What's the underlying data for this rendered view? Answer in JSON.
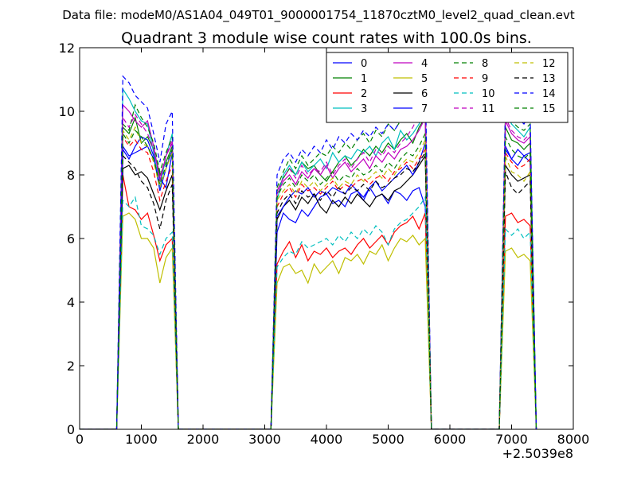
{
  "chart_data": {
    "type": "line",
    "suptitle": "Data file: modeM0/AS1A04_049T01_9000001754_11870cztM0_level2_quad_clean.evt",
    "title": "Quadrant 3 module wise count rates with 100.0s bins.",
    "xlabel": "",
    "ylabel": "",
    "x_offset_label": "+2.5039e8",
    "xlim": [
      0,
      8000
    ],
    "ylim": [
      0,
      12
    ],
    "xticks": [
      0,
      1000,
      2000,
      3000,
      4000,
      5000,
      6000,
      7000,
      8000
    ],
    "yticks": [
      0,
      2,
      4,
      6,
      8,
      10,
      12
    ],
    "grid": false,
    "legend_position": "top-right",
    "legend_columns": 4,
    "segments": [
      {
        "x_start": 700,
        "x_end": 1500
      },
      {
        "x_start": 3200,
        "x_end": 5600
      },
      {
        "x_start": 6900,
        "x_end": 7300
      }
    ],
    "series": [
      {
        "name": "0",
        "color": "#0000ff",
        "dash": "solid",
        "segments": [
          [
            8.9,
            8.6,
            8.7,
            8.8,
            8.9,
            8.5,
            7.9,
            7.6,
            8.7
          ],
          [
            6.2,
            6.8,
            6.6,
            6.5,
            6.9,
            6.7,
            7.0,
            7.3,
            7.4,
            7.1,
            7.2,
            7.0,
            7.4,
            7.5,
            7.2,
            7.6,
            7.3,
            7.4,
            7.1,
            7.5,
            7.4,
            7.2,
            7.5,
            7.6,
            7.0
          ],
          [
            8.8,
            8.5,
            8.3,
            8.6,
            8.7
          ]
        ]
      },
      {
        "name": "1",
        "color": "#008000",
        "dash": "solid",
        "segments": [
          [
            9.5,
            9.3,
            9.8,
            9.0,
            9.2,
            8.8,
            8.0,
            8.4,
            8.9
          ],
          [
            7.5,
            7.9,
            8.2,
            8.0,
            8.4,
            8.2,
            8.3,
            8.0,
            7.8,
            8.1,
            8.4,
            8.6,
            8.3,
            8.5,
            8.8,
            8.6,
            8.9,
            8.7,
            9.0,
            8.8,
            9.1,
            9.3,
            9.0,
            9.5,
            9.8
          ],
          [
            9.5,
            9.1,
            9.0,
            8.8,
            9.0
          ]
        ]
      },
      {
        "name": "2",
        "color": "#ff0000",
        "dash": "solid",
        "segments": [
          [
            8.0,
            7.0,
            6.9,
            6.6,
            6.8,
            6.1,
            5.3,
            5.8,
            6.0
          ],
          [
            5.2,
            5.6,
            5.9,
            5.4,
            5.8,
            5.3,
            5.6,
            5.5,
            5.7,
            5.4,
            5.6,
            5.7,
            5.5,
            5.8,
            6.0,
            5.7,
            5.9,
            6.1,
            5.8,
            6.2,
            6.4,
            6.5,
            6.7,
            6.3,
            6.8
          ],
          [
            6.7,
            6.8,
            6.5,
            6.6,
            6.4
          ]
        ]
      },
      {
        "name": "3",
        "color": "#00bfbf",
        "dash": "solid",
        "segments": [
          [
            10.7,
            10.4,
            10.0,
            9.7,
            9.6,
            8.7,
            7.6,
            8.6,
            9.3
          ],
          [
            7.2,
            8.0,
            8.3,
            8.0,
            8.4,
            8.1,
            8.3,
            8.5,
            8.2,
            8.7,
            8.4,
            8.6,
            8.5,
            8.8,
            8.7,
            8.9,
            8.6,
            9.0,
            9.2,
            8.8,
            9.4,
            9.1,
            9.3,
            9.6,
            10.2
          ],
          [
            10.0,
            9.6,
            9.4,
            9.2,
            9.5
          ]
        ]
      },
      {
        "name": "4",
        "color": "#bf00bf",
        "dash": "solid",
        "segments": [
          [
            10.2,
            10.0,
            9.7,
            9.5,
            9.7,
            8.9,
            7.8,
            8.6,
            9.0
          ],
          [
            7.4,
            7.8,
            8.0,
            7.7,
            8.1,
            7.9,
            8.2,
            8.0,
            8.3,
            7.9,
            8.2,
            8.4,
            8.1,
            8.3,
            8.5,
            8.2,
            8.6,
            8.4,
            8.7,
            8.5,
            8.8,
            8.9,
            9.1,
            9.4,
            9.8
          ],
          [
            9.7,
            9.3,
            9.1,
            9.0,
            9.2
          ]
        ]
      },
      {
        "name": "5",
        "color": "#bfbf00",
        "dash": "solid",
        "segments": [
          [
            6.7,
            6.8,
            6.6,
            6.0,
            6.0,
            5.7,
            4.6,
            5.4,
            5.7
          ],
          [
            4.6,
            5.1,
            5.2,
            4.9,
            5.0,
            4.6,
            5.2,
            4.9,
            5.1,
            5.3,
            4.9,
            5.4,
            5.3,
            5.5,
            5.2,
            5.6,
            5.5,
            5.8,
            5.3,
            5.7,
            6.0,
            5.9,
            6.1,
            5.8,
            6.0
          ],
          [
            5.6,
            5.7,
            5.4,
            5.5,
            5.3
          ]
        ]
      },
      {
        "name": "6",
        "color": "#000000",
        "dash": "solid",
        "segments": [
          [
            8.2,
            8.3,
            8.0,
            8.1,
            7.9,
            7.4,
            6.9,
            7.5,
            8.0
          ],
          [
            6.6,
            7.0,
            7.2,
            6.9,
            7.3,
            7.1,
            7.4,
            7.0,
            6.8,
            7.2,
            7.0,
            7.3,
            7.1,
            7.4,
            7.2,
            7.0,
            7.3,
            7.4,
            7.2,
            7.5,
            7.6,
            7.8,
            8.0,
            8.3,
            8.6
          ],
          [
            8.3,
            8.0,
            7.8,
            7.9,
            8.0
          ]
        ]
      },
      {
        "name": "7",
        "color": "#0000ff",
        "dash": "solid",
        "segments": [
          [
            8.8,
            8.5,
            8.9,
            9.2,
            9.1,
            8.6,
            7.5,
            8.2,
            8.8
          ],
          [
            6.7,
            7.0,
            7.3,
            7.5,
            7.4,
            7.6,
            7.3,
            7.5,
            7.4,
            7.6,
            7.5,
            7.4,
            7.7,
            7.5,
            7.3,
            7.6,
            7.8,
            7.5,
            7.7,
            7.9,
            8.1,
            8.3,
            8.0,
            8.4,
            9.0
          ],
          [
            8.9,
            8.5,
            8.8,
            8.6,
            8.4
          ]
        ]
      },
      {
        "name": "8",
        "color": "#008000",
        "dash": "dashed",
        "segments": [
          [
            9.6,
            9.4,
            10.2,
            9.8,
            9.5,
            9.0,
            8.1,
            8.7,
            9.2
          ],
          [
            7.6,
            8.1,
            8.5,
            8.2,
            8.6,
            8.3,
            8.5,
            8.7,
            8.6,
            8.9,
            8.7,
            9.0,
            8.8,
            9.1,
            9.3,
            9.0,
            9.4,
            9.2,
            9.6,
            9.4,
            9.7,
            9.9,
            10.1,
            10.3,
            10.8
          ],
          [
            10.1,
            9.7,
            9.5,
            9.4,
            9.6
          ]
        ]
      },
      {
        "name": "9",
        "color": "#ff0000",
        "dash": "dashed",
        "segments": [
          [
            9.2,
            8.9,
            9.1,
            8.8,
            8.7,
            8.1,
            7.2,
            7.8,
            8.3
          ],
          [
            7.0,
            7.4,
            7.6,
            7.3,
            7.7,
            7.5,
            7.6,
            7.4,
            7.6,
            7.8,
            7.5,
            7.7,
            7.6,
            7.8,
            7.9,
            7.7,
            7.9,
            8.0,
            7.8,
            8.1,
            8.2,
            8.4,
            8.2,
            8.5,
            8.8
          ],
          [
            8.7,
            8.4,
            8.2,
            8.3,
            8.5
          ]
        ]
      },
      {
        "name": "10",
        "color": "#00bfbf",
        "dash": "dashed",
        "segments": [
          [
            7.2,
            7.0,
            7.3,
            6.4,
            6.3,
            6.1,
            5.5,
            6.0,
            6.2
          ],
          [
            5.1,
            5.4,
            5.6,
            5.5,
            5.9,
            5.7,
            5.8,
            5.9,
            6.0,
            5.8,
            6.1,
            5.9,
            6.2,
            6.0,
            6.3,
            6.1,
            6.4,
            6.2,
            5.8,
            6.3,
            6.5,
            6.6,
            6.8,
            7.0,
            7.3
          ],
          [
            6.3,
            6.1,
            6.3,
            6.0,
            6.2
          ]
        ]
      },
      {
        "name": "11",
        "color": "#bf00bf",
        "dash": "dashed",
        "segments": [
          [
            9.8,
            9.5,
            9.9,
            9.6,
            9.3,
            8.8,
            7.9,
            8.6,
            9.1
          ],
          [
            7.5,
            7.9,
            8.2,
            7.9,
            8.3,
            8.0,
            8.2,
            8.1,
            8.4,
            8.0,
            8.3,
            8.5,
            8.2,
            8.5,
            8.7,
            8.4,
            8.8,
            8.6,
            8.9,
            8.7,
            9.0,
            9.2,
            9.5,
            9.9,
            10.5
          ],
          [
            9.8,
            9.4,
            9.2,
            9.1,
            9.3
          ]
        ]
      },
      {
        "name": "12",
        "color": "#bfbf00",
        "dash": "dashed",
        "segments": [
          [
            9.4,
            9.1,
            9.5,
            9.0,
            8.9,
            8.4,
            7.6,
            8.2,
            8.7
          ],
          [
            7.2,
            7.5,
            7.7,
            7.4,
            7.8,
            7.6,
            7.8,
            7.5,
            7.7,
            7.9,
            7.6,
            7.8,
            7.7,
            8.0,
            7.8,
            7.9,
            8.1,
            7.9,
            8.2,
            8.0,
            8.3,
            8.5,
            8.4,
            8.7,
            9.1
          ],
          [
            8.6,
            8.1,
            8.0,
            7.8,
            8.1
          ]
        ]
      },
      {
        "name": "13",
        "color": "#000000",
        "dash": "dashed",
        "segments": [
          [
            8.6,
            8.4,
            8.2,
            7.8,
            7.6,
            7.1,
            6.3,
            7.2,
            7.7
          ],
          [
            6.8,
            7.2,
            7.4,
            7.1,
            7.5,
            7.3,
            7.4,
            7.2,
            7.5,
            7.3,
            7.6,
            7.4,
            7.6,
            7.5,
            7.7,
            7.5,
            7.8,
            7.6,
            7.7,
            7.9,
            8.0,
            8.2,
            8.1,
            8.4,
            8.7
          ],
          [
            8.1,
            7.6,
            7.4,
            7.6,
            7.8
          ]
        ]
      },
      {
        "name": "14",
        "color": "#0000ff",
        "dash": "dashed",
        "segments": [
          [
            11.1,
            10.9,
            10.5,
            10.3,
            10.1,
            9.3,
            8.4,
            9.6,
            10.0
          ],
          [
            8.0,
            8.5,
            8.7,
            8.4,
            8.8,
            8.6,
            8.9,
            8.7,
            9.1,
            8.8,
            9.2,
            9.0,
            9.3,
            9.1,
            9.4,
            9.2,
            9.5,
            9.3,
            9.6,
            9.4,
            9.7,
            10.0,
            10.3,
            10.7,
            11.2
          ],
          [
            10.3,
            9.9,
            9.8,
            9.6,
            9.9
          ]
        ]
      },
      {
        "name": "15",
        "color": "#008000",
        "dash": "dashed",
        "segments": [
          [
            9.3,
            9.0,
            9.4,
            9.2,
            8.9,
            8.5,
            7.7,
            8.3,
            8.8
          ],
          [
            7.3,
            7.7,
            7.9,
            7.6,
            8.0,
            7.8,
            8.0,
            7.7,
            7.9,
            8.1,
            7.8,
            8.0,
            7.9,
            8.2,
            8.0,
            8.1,
            8.3,
            8.1,
            8.4,
            8.2,
            8.5,
            8.7,
            8.6,
            8.9,
            9.3
          ],
          [
            9.2,
            8.8,
            8.6,
            8.5,
            8.7
          ]
        ]
      }
    ]
  }
}
